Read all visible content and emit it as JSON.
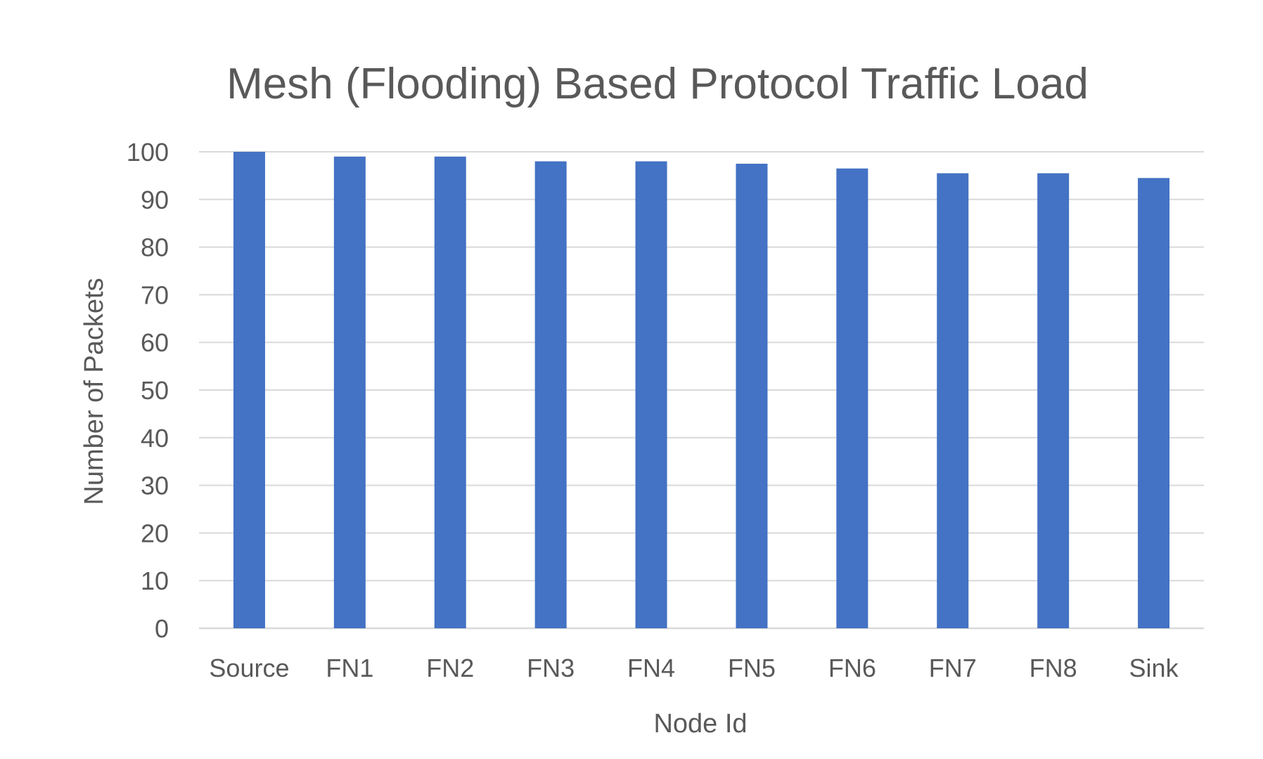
{
  "chart_data": {
    "type": "bar",
    "title": "Mesh (Flooding) Based Protocol Traffic Load",
    "xlabel": "Node Id",
    "ylabel": "Number of Packets",
    "categories": [
      "Source",
      "FN1",
      "FN2",
      "FN3",
      "FN4",
      "FN5",
      "FN6",
      "FN7",
      "FN8",
      "Sink"
    ],
    "values": [
      100,
      99,
      99,
      98,
      98,
      97.5,
      96.5,
      95.5,
      95.5,
      94.5
    ],
    "ylim": [
      0,
      100
    ],
    "yticks": [
      0,
      10,
      20,
      30,
      40,
      50,
      60,
      70,
      80,
      90,
      100
    ],
    "grid": true,
    "legend": "none",
    "bar_color": "#4472C4"
  }
}
